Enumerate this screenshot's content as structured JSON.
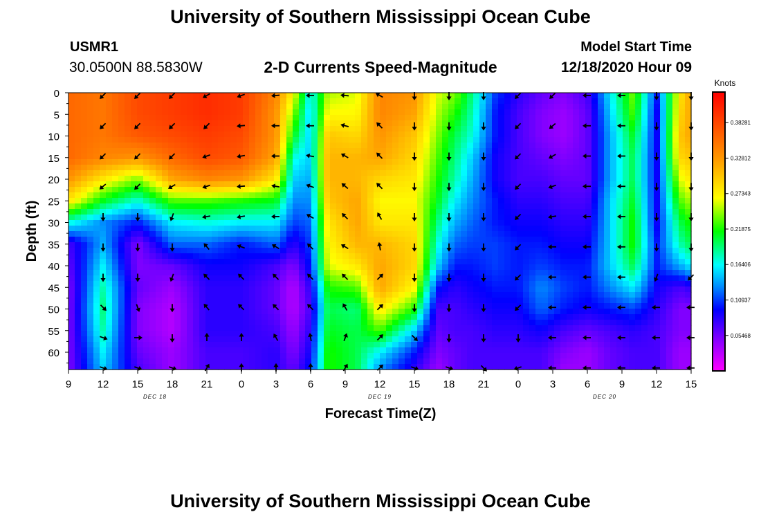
{
  "header": {
    "title": "University of Southern Mississippi Ocean Cube",
    "station_id": "USMR1",
    "coordinates": "30.0500N 88.5830W",
    "chart_title": "2-D Currents Speed-Magnitude",
    "model_start_label": "Model Start Time",
    "model_start_value": "12/18/2020 Hour 09"
  },
  "footer": {
    "title": "University of Southern Mississippi Ocean Cube"
  },
  "chart_data": {
    "type": "heatmap",
    "title": "2-D Currents Speed-Magnitude",
    "xlabel": "Forecast Time(Z)",
    "ylabel": "Depth (ft)",
    "x_ticks": [
      "9",
      "12",
      "15",
      "18",
      "21",
      "0",
      "3",
      "6",
      "9",
      "12",
      "15",
      "18",
      "21",
      "0",
      "3",
      "6",
      "9",
      "12",
      "15"
    ],
    "x_range_hours": [
      0,
      54
    ],
    "date_labels": [
      {
        "label": "DEC 18",
        "hour": 7.5
      },
      {
        "label": "DEC 19",
        "hour": 27
      },
      {
        "label": "DEC 20",
        "hour": 46.5
      }
    ],
    "y_ticks": [
      0,
      5,
      10,
      15,
      20,
      25,
      30,
      35,
      40,
      45,
      50,
      55,
      60
    ],
    "y_range": [
      0,
      64
    ],
    "y_inverted": true,
    "colorbar": {
      "title": "Knots",
      "ticks": [
        0.05468,
        0.10937,
        0.16406,
        0.21875,
        0.27343,
        0.32812,
        0.38281
      ],
      "tick_labels": [
        "0.05468",
        "0.10937",
        "0.16406",
        "0.21875",
        "0.27343",
        "0.32812",
        "0.38281"
      ],
      "range": [
        0,
        0.43
      ],
      "colors": [
        "#ff00ff",
        "#8800ff",
        "#0000ff",
        "#0088ff",
        "#00ffff",
        "#00ff00",
        "#ffff00",
        "#ff9900",
        "#ff0000"
      ]
    },
    "speed_profiles": [
      {
        "hour": 0,
        "speed": [
          0.36,
          0.36,
          0.36,
          0.36,
          0.33,
          0.28,
          0.17,
          0.07,
          0.06,
          0.05,
          0.05,
          0.05,
          0.05,
          0.05
        ]
      },
      {
        "hour": 3,
        "speed": [
          0.35,
          0.35,
          0.35,
          0.34,
          0.28,
          0.21,
          0.13,
          0.14,
          0.16,
          0.18,
          0.19,
          0.18,
          0.16,
          0.15
        ]
      },
      {
        "hour": 6,
        "speed": [
          0.38,
          0.38,
          0.37,
          0.33,
          0.24,
          0.17,
          0.1,
          0.05,
          0.05,
          0.06,
          0.05,
          0.05,
          0.06,
          0.07
        ]
      },
      {
        "hour": 9,
        "speed": [
          0.39,
          0.39,
          0.38,
          0.36,
          0.32,
          0.23,
          0.16,
          0.12,
          0.06,
          0.04,
          0.03,
          0.03,
          0.04,
          0.04
        ]
      },
      {
        "hour": 12,
        "speed": [
          0.4,
          0.4,
          0.39,
          0.38,
          0.34,
          0.23,
          0.17,
          0.12,
          0.09,
          0.08,
          0.08,
          0.08,
          0.07,
          0.07
        ]
      },
      {
        "hour": 15,
        "speed": [
          0.39,
          0.39,
          0.38,
          0.37,
          0.33,
          0.22,
          0.16,
          0.1,
          0.09,
          0.08,
          0.08,
          0.08,
          0.07,
          0.07
        ]
      },
      {
        "hour": 18,
        "speed": [
          0.34,
          0.33,
          0.33,
          0.32,
          0.28,
          0.21,
          0.16,
          0.12,
          0.07,
          0.06,
          0.06,
          0.07,
          0.08,
          0.08
        ]
      },
      {
        "hour": 19.5,
        "speed": [
          0.27,
          0.24,
          0.21,
          0.17,
          0.15,
          0.13,
          0.11,
          0.08,
          0.05,
          0.03,
          0.03,
          0.04,
          0.05,
          0.06
        ]
      },
      {
        "hour": 21,
        "speed": [
          0.16,
          0.15,
          0.15,
          0.15,
          0.14,
          0.13,
          0.12,
          0.11,
          0.1,
          0.08,
          0.07,
          0.08,
          0.09,
          0.1
        ]
      },
      {
        "hour": 22.5,
        "speed": [
          0.25,
          0.27,
          0.3,
          0.31,
          0.31,
          0.3,
          0.28,
          0.27,
          0.26,
          0.22,
          0.2,
          0.21,
          0.22,
          0.22
        ]
      },
      {
        "hour": 25,
        "speed": [
          0.26,
          0.27,
          0.29,
          0.31,
          0.31,
          0.32,
          0.32,
          0.31,
          0.28,
          0.23,
          0.19,
          0.2,
          0.2,
          0.2
        ]
      },
      {
        "hour": 27,
        "speed": [
          0.34,
          0.34,
          0.33,
          0.32,
          0.29,
          0.27,
          0.28,
          0.31,
          0.32,
          0.32,
          0.28,
          0.23,
          0.16,
          0.13
        ]
      },
      {
        "hour": 30,
        "speed": [
          0.33,
          0.32,
          0.3,
          0.29,
          0.28,
          0.27,
          0.28,
          0.29,
          0.29,
          0.27,
          0.22,
          0.15,
          0.1,
          0.08
        ]
      },
      {
        "hour": 32,
        "speed": [
          0.26,
          0.25,
          0.24,
          0.23,
          0.22,
          0.21,
          0.19,
          0.17,
          0.15,
          0.1,
          0.07,
          0.06,
          0.05,
          0.04
        ]
      },
      {
        "hour": 33.5,
        "speed": [
          0.24,
          0.22,
          0.2,
          0.19,
          0.18,
          0.16,
          0.14,
          0.12,
          0.1,
          0.08,
          0.07,
          0.07,
          0.06,
          0.06
        ]
      },
      {
        "hour": 35,
        "speed": [
          0.19,
          0.18,
          0.17,
          0.15,
          0.14,
          0.13,
          0.12,
          0.11,
          0.1,
          0.09,
          0.08,
          0.07,
          0.07,
          0.07
        ]
      },
      {
        "hour": 37,
        "speed": [
          0.11,
          0.1,
          0.1,
          0.09,
          0.09,
          0.1,
          0.1,
          0.11,
          0.11,
          0.1,
          0.09,
          0.08,
          0.07,
          0.07
        ]
      },
      {
        "hour": 39,
        "speed": [
          0.08,
          0.07,
          0.07,
          0.07,
          0.07,
          0.08,
          0.09,
          0.1,
          0.1,
          0.1,
          0.09,
          0.08,
          0.07,
          0.07
        ]
      },
      {
        "hour": 41,
        "speed": [
          0.06,
          0.05,
          0.05,
          0.06,
          0.07,
          0.08,
          0.09,
          0.1,
          0.11,
          0.13,
          0.12,
          0.09,
          0.07,
          0.07
        ]
      },
      {
        "hour": 43,
        "speed": [
          0.05,
          0.04,
          0.04,
          0.05,
          0.06,
          0.07,
          0.08,
          0.09,
          0.1,
          0.11,
          0.1,
          0.07,
          0.05,
          0.04
        ]
      },
      {
        "hour": 45,
        "speed": [
          0.07,
          0.06,
          0.06,
          0.06,
          0.06,
          0.07,
          0.08,
          0.09,
          0.1,
          0.1,
          0.09,
          0.06,
          0.04,
          0.04
        ]
      },
      {
        "hour": 47,
        "speed": [
          0.16,
          0.15,
          0.14,
          0.14,
          0.14,
          0.15,
          0.15,
          0.15,
          0.15,
          0.13,
          0.1,
          0.07,
          0.06,
          0.06
        ]
      },
      {
        "hour": 49,
        "speed": [
          0.24,
          0.23,
          0.21,
          0.2,
          0.2,
          0.21,
          0.22,
          0.22,
          0.2,
          0.16,
          0.11,
          0.08,
          0.07,
          0.07
        ]
      },
      {
        "hour": 51,
        "speed": [
          0.1,
          0.09,
          0.09,
          0.09,
          0.09,
          0.09,
          0.09,
          0.1,
          0.1,
          0.09,
          0.08,
          0.07,
          0.07,
          0.07
        ]
      },
      {
        "hour": 53,
        "speed": [
          0.28,
          0.29,
          0.3,
          0.29,
          0.26,
          0.23,
          0.2,
          0.18,
          0.14,
          0.07,
          0.05,
          0.05,
          0.04,
          0.04
        ]
      },
      {
        "hour": 54,
        "speed": [
          0.32,
          0.32,
          0.32,
          0.3,
          0.28,
          0.25,
          0.22,
          0.2,
          0.16,
          0.08,
          0.05,
          0.05,
          0.04,
          0.04
        ]
      }
    ],
    "speed_depths": [
      0,
      5,
      10,
      15,
      20,
      25,
      30,
      35,
      40,
      45,
      50,
      55,
      60,
      64
    ],
    "arrow_depths": [
      0,
      7,
      14,
      21,
      28,
      35,
      42,
      49,
      56,
      63
    ],
    "arrows": [
      {
        "hour": 3,
        "dirs": [
          225,
          225,
          225,
          230,
          180,
          180,
          180,
          135,
          110,
          110
        ]
      },
      {
        "hour": 6,
        "dirs": [
          225,
          225,
          225,
          225,
          180,
          180,
          180,
          160,
          90,
          110
        ]
      },
      {
        "hour": 9,
        "dirs": [
          225,
          225,
          225,
          240,
          200,
          180,
          200,
          180,
          180,
          110
        ]
      },
      {
        "hour": 12,
        "dirs": [
          240,
          225,
          250,
          250,
          260,
          320,
          315,
          320,
          0,
          30
        ]
      },
      {
        "hour": 15,
        "dirs": [
          250,
          265,
          260,
          265,
          260,
          290,
          315,
          315,
          0,
          0
        ]
      },
      {
        "hour": 18,
        "dirs": [
          265,
          270,
          270,
          280,
          270,
          300,
          315,
          315,
          330,
          0
        ]
      },
      {
        "hour": 21,
        "dirs": [
          270,
          270,
          280,
          290,
          300,
          315,
          315,
          315,
          350,
          0
        ]
      },
      {
        "hour": 24,
        "dirs": [
          275,
          285,
          300,
          310,
          315,
          300,
          315,
          330,
          20,
          30
        ]
      },
      {
        "hour": 27,
        "dirs": [
          300,
          315,
          315,
          315,
          330,
          350,
          45,
          45,
          45,
          45
        ]
      },
      {
        "hour": 30,
        "dirs": [
          180,
          180,
          180,
          180,
          180,
          180,
          180,
          180,
          135,
          110
        ]
      },
      {
        "hour": 33,
        "dirs": [
          180,
          180,
          180,
          180,
          180,
          180,
          180,
          180,
          180,
          110
        ]
      },
      {
        "hour": 36,
        "dirs": [
          180,
          180,
          180,
          180,
          180,
          180,
          180,
          180,
          180,
          135
        ]
      },
      {
        "hour": 39,
        "dirs": [
          225,
          225,
          225,
          225,
          225,
          225,
          225,
          225,
          180,
          250
        ]
      },
      {
        "hour": 42,
        "dirs": [
          225,
          230,
          240,
          250,
          260,
          270,
          270,
          270,
          270,
          270
        ]
      },
      {
        "hour": 45,
        "dirs": [
          270,
          270,
          270,
          270,
          270,
          270,
          270,
          270,
          270,
          270
        ]
      },
      {
        "hour": 48,
        "dirs": [
          270,
          270,
          270,
          270,
          270,
          270,
          270,
          270,
          270,
          270
        ]
      },
      {
        "hour": 51,
        "dirs": [
          180,
          180,
          180,
          180,
          180,
          180,
          200,
          270,
          270,
          270
        ]
      },
      {
        "hour": 54,
        "dirs": [
          180,
          180,
          180,
          180,
          180,
          180,
          225,
          270,
          270,
          270
        ]
      }
    ]
  }
}
